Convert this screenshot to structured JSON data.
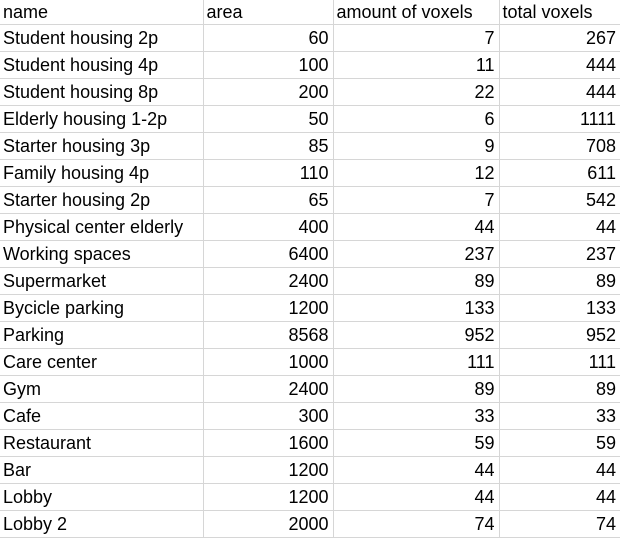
{
  "sheet": {
    "columns": [
      "name",
      "area",
      "amount of voxels",
      "total voxels"
    ],
    "rows": [
      [
        "Student housing 2p",
        "60",
        "7",
        "267"
      ],
      [
        "Student housing 4p",
        "100",
        "11",
        "444"
      ],
      [
        "Student housing 8p",
        "200",
        "22",
        "444"
      ],
      [
        "Elderly housing 1-2p",
        "50",
        "6",
        "1111"
      ],
      [
        "Starter housing 3p",
        "85",
        "9",
        "708"
      ],
      [
        "Family housing 4p",
        "110",
        "12",
        "611"
      ],
      [
        "Starter housing 2p",
        "65",
        "7",
        "542"
      ],
      [
        "Physical center elderly",
        "400",
        "44",
        "44"
      ],
      [
        "Working spaces",
        "6400",
        "237",
        "237"
      ],
      [
        "Supermarket",
        "2400",
        "89",
        "89"
      ],
      [
        "Bycicle parking",
        "1200",
        "133",
        "133"
      ],
      [
        "Parking",
        "8568",
        "952",
        "952"
      ],
      [
        "Care center",
        "1000",
        "111",
        "111"
      ],
      [
        "Gym",
        "2400",
        "89",
        "89"
      ],
      [
        "Cafe",
        "300",
        "33",
        "33"
      ],
      [
        "Restaurant",
        "1600",
        "59",
        "59"
      ],
      [
        "Bar",
        "1200",
        "44",
        "44"
      ],
      [
        "Lobby",
        "1200",
        "44",
        "44"
      ],
      [
        "Lobby 2",
        "2000",
        "74",
        "74"
      ]
    ]
  }
}
